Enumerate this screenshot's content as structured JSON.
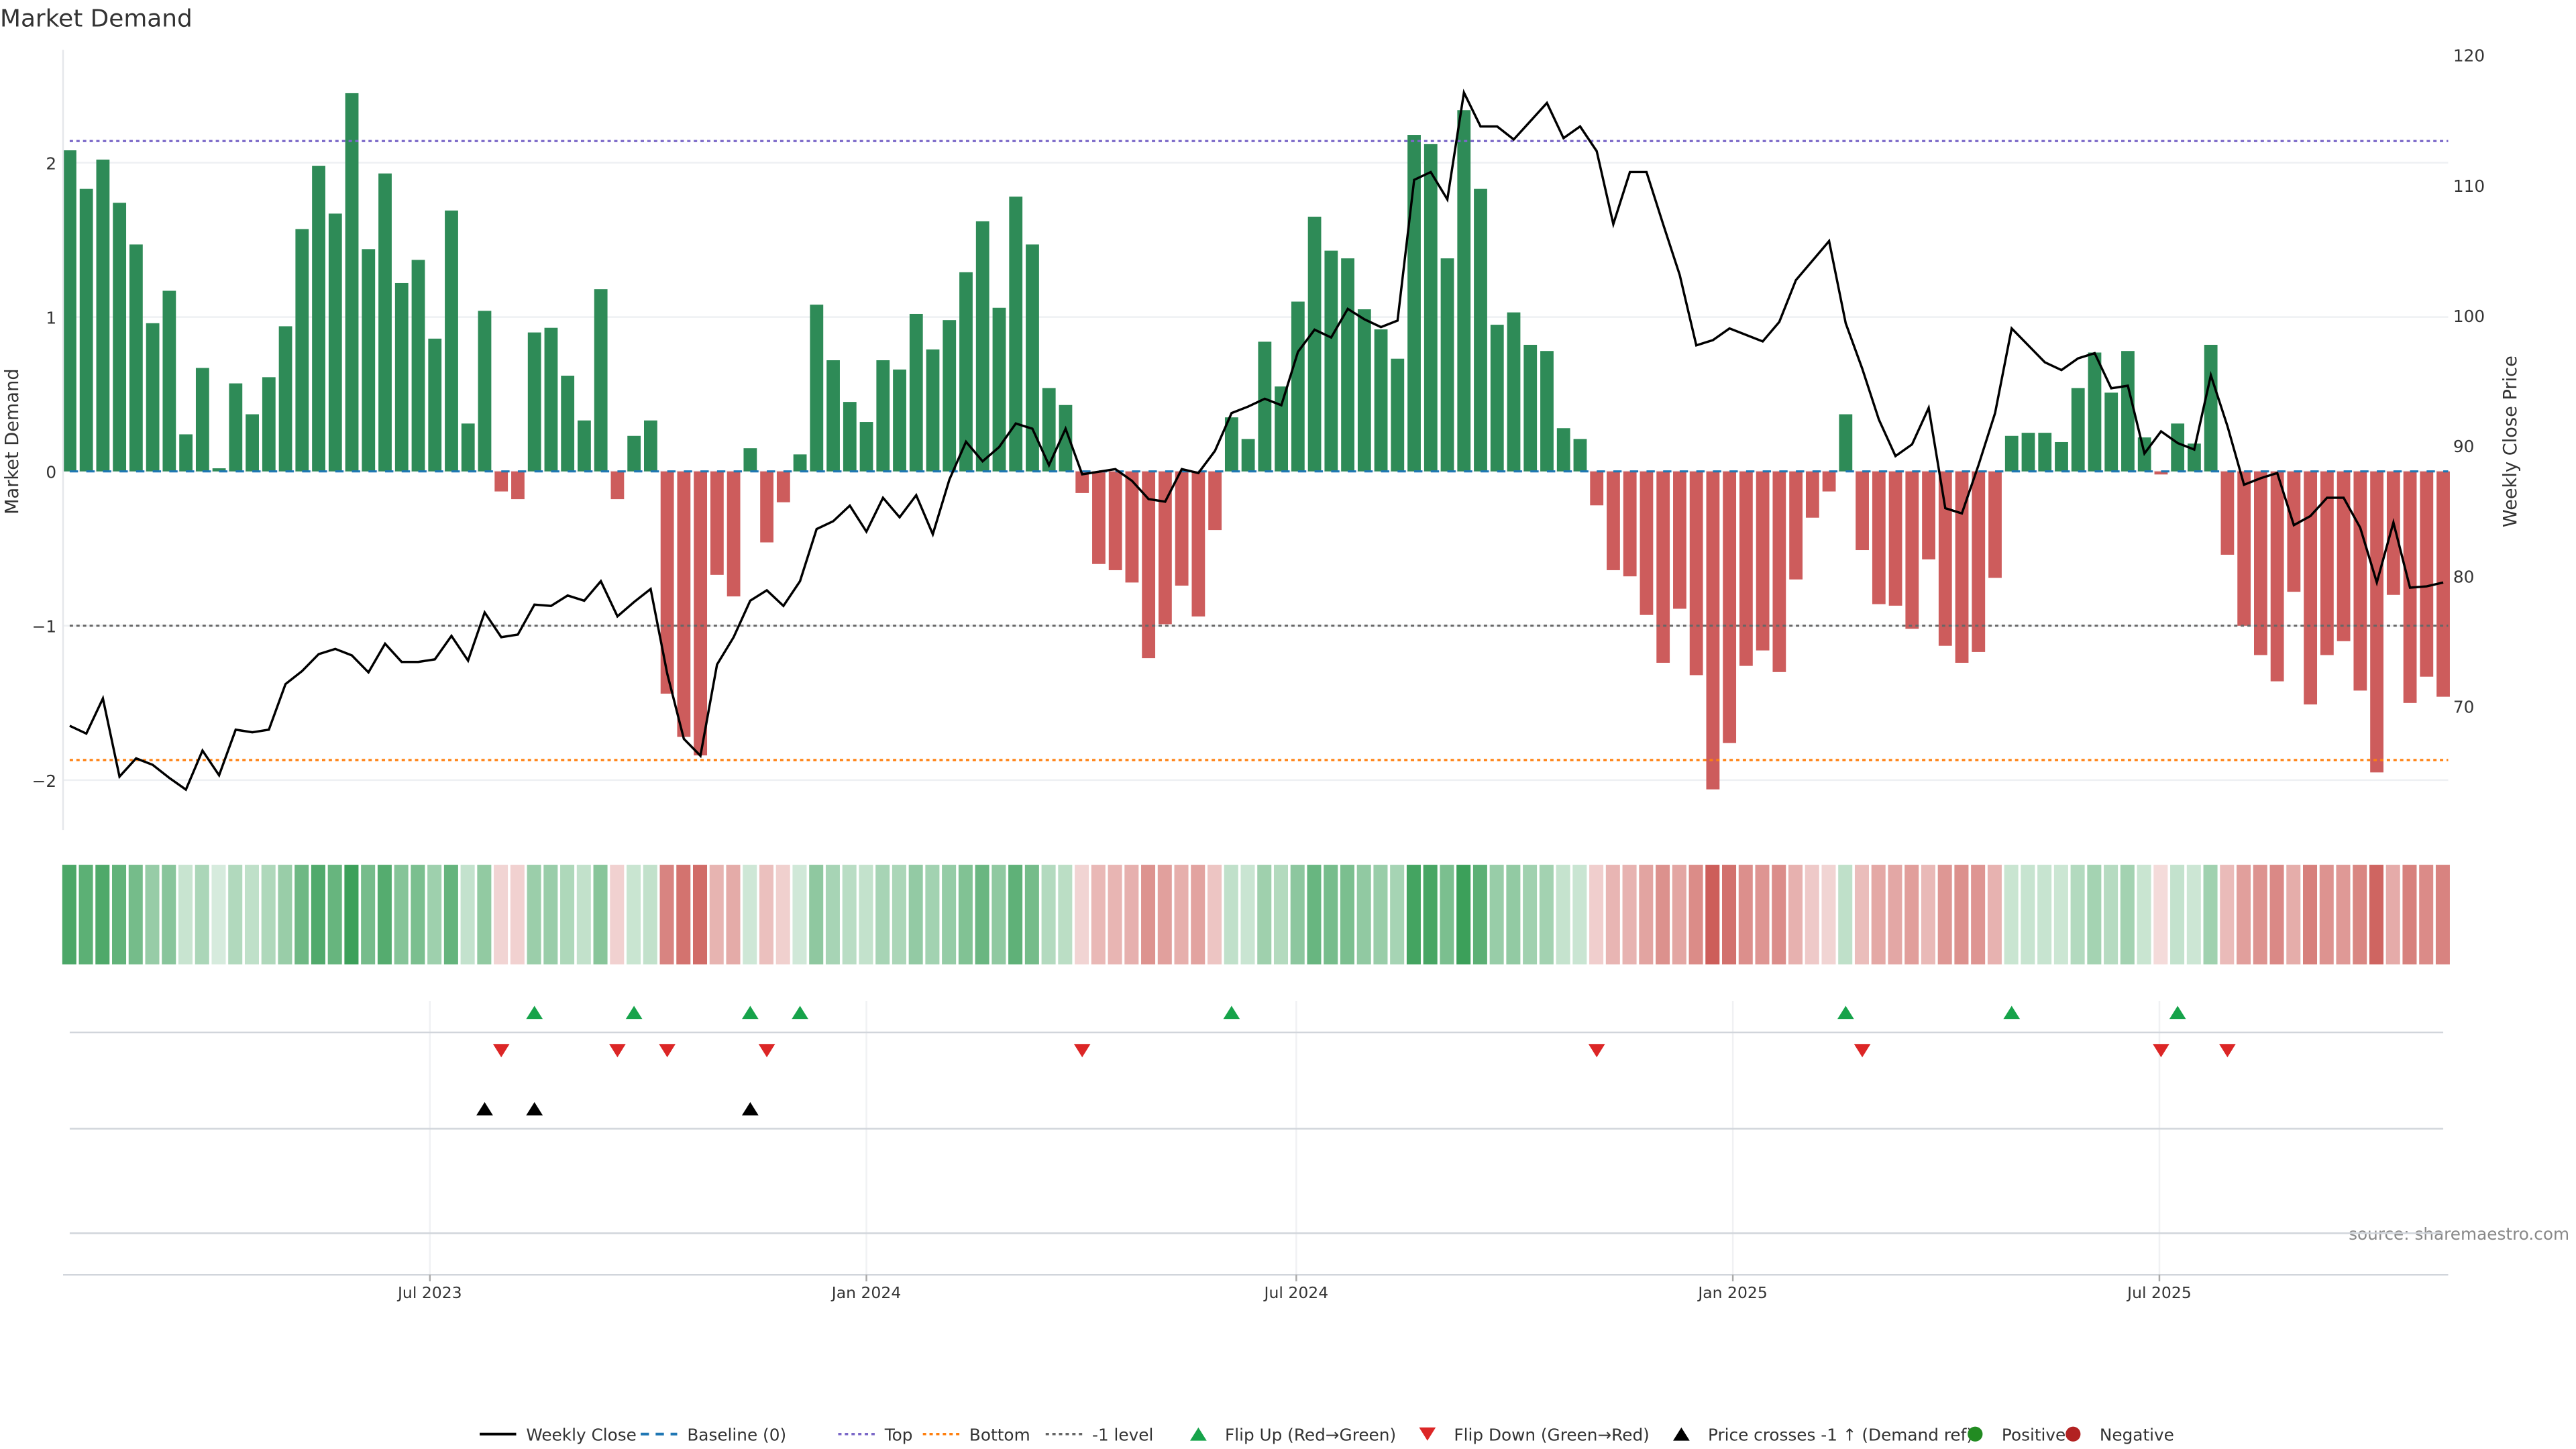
{
  "chart_data": {
    "type": "bar",
    "title": "Market Demand",
    "ylabel": "Market Demand",
    "y2label": "Weekly Close Price",
    "ylim": [
      -2.3,
      2.7
    ],
    "y2lim": [
      61.6,
      120.1
    ],
    "yticks": [
      -2,
      -1,
      0,
      1,
      2
    ],
    "yticklabels": [
      "−2",
      "−1",
      "0",
      "1",
      "2"
    ],
    "y2ticks": [
      70,
      80,
      90,
      100,
      110,
      120
    ],
    "xticks": [
      {
        "label": "Jul 2023",
        "week": 21.7
      },
      {
        "label": "Jan 2024",
        "week": 48
      },
      {
        "label": "Jul 2024",
        "week": 73.9
      },
      {
        "label": "Jan 2025",
        "week": 100.2
      },
      {
        "label": "Jul 2025",
        "week": 125.9
      }
    ],
    "reference_lines": {
      "top": 2.14,
      "bottom": -1.87,
      "minus_one": -1,
      "baseline": 0
    },
    "demand": [
      2.08,
      1.83,
      2.02,
      1.74,
      1.47,
      0.96,
      1.17,
      0.24,
      0.67,
      0.02,
      0.57,
      0.37,
      0.61,
      0.94,
      1.57,
      1.98,
      1.67,
      2.45,
      1.44,
      1.93,
      1.22,
      1.37,
      0.86,
      1.69,
      0.31,
      1.04,
      -0.13,
      -0.18,
      0.9,
      0.93,
      0.62,
      0.33,
      1.18,
      -0.18,
      0.23,
      0.33,
      -1.44,
      -1.72,
      -1.84,
      -0.67,
      -0.81,
      0.15,
      -0.46,
      -0.2,
      0.11,
      1.08,
      0.72,
      0.45,
      0.32,
      0.72,
      0.66,
      1.02,
      0.79,
      0.98,
      1.29,
      1.62,
      1.06,
      1.78,
      1.47,
      0.54,
      0.43,
      -0.14,
      -0.6,
      -0.64,
      -0.72,
      -1.21,
      -0.99,
      -0.74,
      -0.94,
      -0.38,
      0.35,
      0.21,
      0.84,
      0.55,
      1.1,
      1.65,
      1.43,
      1.38,
      1.05,
      0.92,
      0.73,
      2.18,
      2.12,
      1.38,
      2.34,
      1.83,
      0.95,
      1.03,
      0.82,
      0.78,
      0.28,
      0.21,
      -0.22,
      -0.64,
      -0.68,
      -0.93,
      -1.24,
      -0.89,
      -1.32,
      -2.06,
      -1.76,
      -1.26,
      -1.16,
      -1.3,
      -0.7,
      -0.3,
      -0.13,
      0.37,
      -0.51,
      -0.86,
      -0.87,
      -1.02,
      -0.57,
      -1.13,
      -1.24,
      -1.17,
      -0.69,
      0.23,
      0.25,
      0.25,
      0.19,
      0.54,
      0.77,
      0.51,
      0.78,
      0.22,
      -0.02,
      0.31,
      0.18,
      0.82,
      -0.54,
      -1.0,
      -1.19,
      -1.36,
      -0.78,
      -1.51,
      -1.19,
      -1.1,
      -1.42,
      -1.95,
      -0.8,
      -1.5,
      -1.33,
      -1.46
    ],
    "weekly_close": [
      68.5,
      67.9,
      70.6,
      64.6,
      66.0,
      65.5,
      64.5,
      63.6,
      66.6,
      64.7,
      68.2,
      68.0,
      68.2,
      71.7,
      72.7,
      74.0,
      74.4,
      73.9,
      72.6,
      74.8,
      73.4,
      73.4,
      73.6,
      75.4,
      73.5,
      77.2,
      75.3,
      75.5,
      77.8,
      77.7,
      78.5,
      78.1,
      79.6,
      76.9,
      78.0,
      79.0,
      72.5,
      67.5,
      66.2,
      73.2,
      75.3,
      78.1,
      78.9,
      77.7,
      79.6,
      83.6,
      84.2,
      85.4,
      83.4,
      86.0,
      84.5,
      86.2,
      83.2,
      87.4,
      90.3,
      88.8,
      89.9,
      91.7,
      91.3,
      88.5,
      91.3,
      87.8,
      88.0,
      88.2,
      87.3,
      85.9,
      85.7,
      88.2,
      87.9,
      89.6,
      92.5,
      93.0,
      93.6,
      93.1,
      97.2,
      98.9,
      98.3,
      100.5,
      99.7,
      99.1,
      99.6,
      110.4,
      111.0,
      108.9,
      117.1,
      114.5,
      114.5,
      113.5,
      114.9,
      116.3,
      113.6,
      114.5,
      112.6,
      107.0,
      111.0,
      111.0,
      107.0,
      103.1,
      97.7,
      98.1,
      99.0,
      98.5,
      98.0,
      99.5,
      102.7,
      104.2,
      105.7,
      99.4,
      95.9,
      92.0,
      89.2,
      90.1,
      92.9,
      85.2,
      84.8,
      88.5,
      92.5,
      99.0,
      97.7,
      96.4,
      95.8,
      96.7,
      97.1,
      94.4,
      94.6,
      89.4,
      91.1,
      90.2,
      89.7,
      95.4,
      91.5,
      87.0,
      87.5,
      87.9,
      83.9,
      84.6,
      86.0,
      86.0,
      83.7,
      79.5,
      84.1,
      79.1,
      79.2,
      79.5
    ],
    "flip_up_weeks": [
      28,
      34,
      41,
      44,
      70,
      107,
      117,
      127
    ],
    "flip_down_weeks": [
      26,
      33,
      36,
      42,
      61,
      92,
      108,
      126,
      130
    ],
    "price_cross_weeks": [
      25,
      28,
      41
    ],
    "legend": [
      {
        "label": "Weekly Close",
        "kind": "line",
        "color": "#000000"
      },
      {
        "label": "Baseline (0)",
        "kind": "dash",
        "color": "#1f77b4"
      },
      {
        "label": "Top",
        "kind": "dot",
        "color": "#7b68c8"
      },
      {
        "label": "Bottom",
        "kind": "dot",
        "color": "#ff7f0e"
      },
      {
        "label": "-1 level",
        "kind": "dot",
        "color": "#666666"
      },
      {
        "label": "Flip Up (Red→Green)",
        "kind": "up",
        "color": "#16a34a"
      },
      {
        "label": "Flip Down (Green→Red)",
        "kind": "down",
        "color": "#dc2626"
      },
      {
        "label": "Price crosses -1 ↑ (Demand ref)",
        "kind": "up",
        "color": "#000000"
      },
      {
        "label": "Positive",
        "kind": "circle",
        "color": "#228b22"
      },
      {
        "label": "Negative",
        "kind": "circle",
        "color": "#b22222"
      }
    ],
    "colors": {
      "positive": "#2e8b57",
      "negative": "#cd5c5c",
      "top": "#7b68c8",
      "bottom": "#ff7f0e",
      "minus_one": "#666666",
      "baseline": "#1f77b4"
    }
  },
  "source": "source: sharemaestro.com"
}
